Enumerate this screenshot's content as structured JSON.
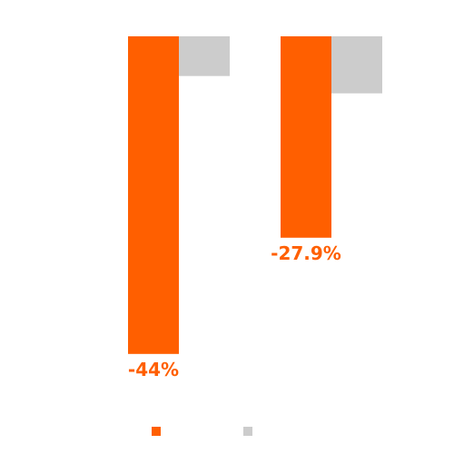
{
  "chart_data": {
    "type": "bar",
    "categories": [
      "",
      ""
    ],
    "series": [
      {
        "values": [
          -44,
          -27.9
        ],
        "color": "#FF5F00",
        "labels": [
          "-44%",
          "-27.9%"
        ]
      },
      {
        "values": [
          -5.5,
          -7.9
        ],
        "color": "#CCCCCC"
      }
    ],
    "ylim": [
      -50,
      0
    ],
    "grid": false,
    "legend": "bottom",
    "title": "",
    "xlabel": "",
    "ylabel": ""
  }
}
